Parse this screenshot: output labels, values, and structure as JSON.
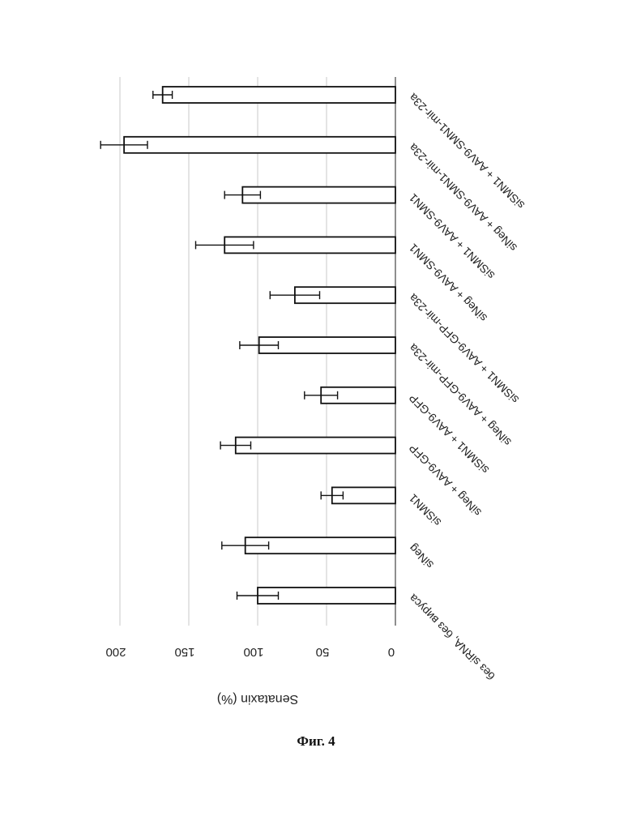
{
  "chart_data": {
    "type": "bar",
    "orientation": "horizontal",
    "ylabel": "Senataxin (%)",
    "ylim": [
      0,
      200
    ],
    "yticks": [
      0,
      50,
      100,
      150,
      200
    ],
    "grid": true,
    "categories": [
      "без siRNA, без вируса",
      "siNeg",
      "siSMN1",
      "siNeg + AAV9-GFP",
      "siSMN1 + AAV9-GFP",
      "siNeg + AAV9-GFP-mir-23a",
      "siSMN1 + AAV9-GFP-mir-23a",
      "siNeg + AAV9-SMN1",
      "siSMN1 + AAV9-SMN1",
      "siNeg + AAV9-SMN1-mir-23a",
      "siSMN1 + AAV9-SMN1-mir-23a"
    ],
    "values": [
      100,
      109,
      46,
      116,
      54,
      99,
      73,
      124,
      111,
      197,
      169
    ],
    "errors": [
      15,
      17,
      8,
      11,
      12,
      14,
      18,
      21,
      13,
      17,
      7
    ]
  },
  "figure": {
    "caption": "Фиг. 4"
  }
}
